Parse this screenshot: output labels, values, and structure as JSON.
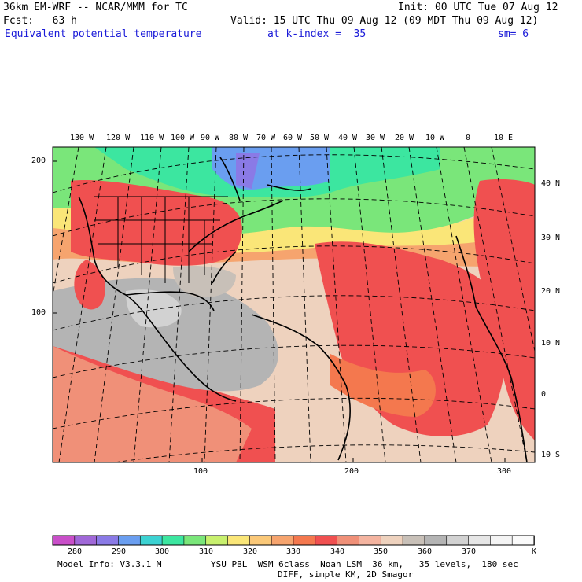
{
  "header": {
    "model": "36km EM-WRF -- NCAR/MMM for TC",
    "init": "Init: 00 UTC Tue 07 Aug 12",
    "fcst": "Fcst:   63 h",
    "valid": "Valid: 15 UTC Thu 09 Aug 12 (09 MDT Thu 09 Aug 12)",
    "field": "Equivalent potential temperature",
    "level": "at k-index =  35",
    "smooth": "sm= 6"
  },
  "map": {
    "top_lon_labels": [
      "130 W",
      "120 W",
      "110 W",
      "100 W",
      "90 W",
      "80 W",
      "70 W",
      "60 W",
      "50 W",
      "40 W",
      "30 W",
      "20 W",
      "10 W",
      "0",
      "10 E"
    ],
    "right_lat_labels": [
      "40 N",
      "30 N",
      "20 N",
      "10 N",
      "0",
      "10 S"
    ],
    "left_grid_labels": [
      "200",
      "100"
    ],
    "bottom_grid_labels": [
      "100",
      "200",
      "300"
    ]
  },
  "legend": {
    "colors": [
      "#c94fc9",
      "#a068d8",
      "#8a7ae6",
      "#6a9ef0",
      "#3cd2d2",
      "#3ce6a0",
      "#7ae67a",
      "#c8f06e",
      "#fae678",
      "#fac878",
      "#f6a46e",
      "#f4784e",
      "#f05050",
      "#f09078",
      "#f4b4a0",
      "#eed2be",
      "#c8c0b8",
      "#b4b4b4",
      "#d2d2d2",
      "#e6e6e6",
      "#f4f4f4",
      "#fafafa"
    ],
    "ticks": [
      "280",
      "290",
      "300",
      "310",
      "320",
      "330",
      "340",
      "350",
      "360",
      "370"
    ],
    "unit": "K"
  },
  "footer": {
    "info": "Model Info: V3.3.1 M",
    "physics": "YSU PBL  WSM 6class  Noah LSM  36 km,   35 levels,  180 sec",
    "diff": "DIFF, simple KM, 2D Smagor"
  }
}
